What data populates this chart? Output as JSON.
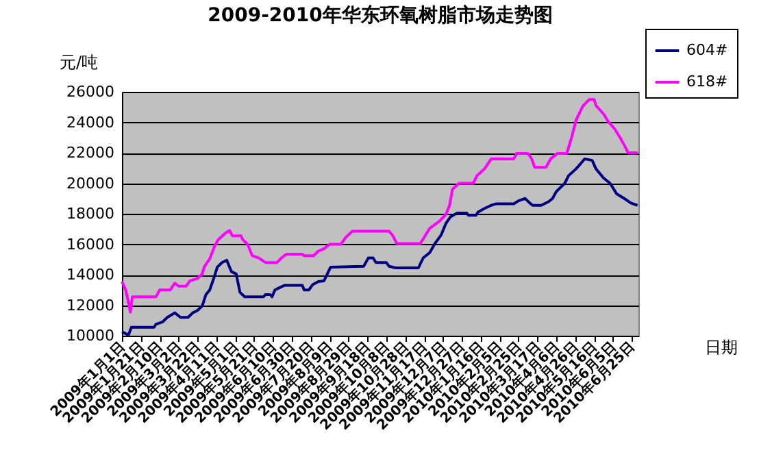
{
  "chart_data": {
    "type": "line",
    "title": "2009-2010年华东环氧树脂市场走势图",
    "xlabel": "日期",
    "ylabel": "元/吨",
    "ylim": [
      10000,
      26000
    ],
    "yticks": [
      10000,
      12000,
      14000,
      16000,
      18000,
      20000,
      22000,
      24000,
      26000
    ],
    "xlim": [
      "2009-01-01",
      "2010-07-02"
    ],
    "xticks": [
      {
        "value": "2009-01-01",
        "label": "2009年1月1日"
      },
      {
        "value": "2009-01-21",
        "label": "2009年1月21日"
      },
      {
        "value": "2009-02-10",
        "label": "2009年2月10日"
      },
      {
        "value": "2009-03-02",
        "label": "2009年3月2日"
      },
      {
        "value": "2009-03-22",
        "label": "2009年3月22日"
      },
      {
        "value": "2009-04-11",
        "label": "2009年4月11日"
      },
      {
        "value": "2009-05-01",
        "label": "2009年5月1日"
      },
      {
        "value": "2009-05-21",
        "label": "2009年5月21日"
      },
      {
        "value": "2009-06-10",
        "label": "2009年6月10日"
      },
      {
        "value": "2009-06-30",
        "label": "2009年6月30日"
      },
      {
        "value": "2009-07-20",
        "label": "2009年7月20日"
      },
      {
        "value": "2009-08-09",
        "label": "2009年8月9日"
      },
      {
        "value": "2009-08-29",
        "label": "2009年8月29日"
      },
      {
        "value": "2009-09-18",
        "label": "2009年9月18日"
      },
      {
        "value": "2009-10-08",
        "label": "2009年10月8日"
      },
      {
        "value": "2009-10-28",
        "label": "2009年10月28日"
      },
      {
        "value": "2009-11-17",
        "label": "2009年11月17日"
      },
      {
        "value": "2009-12-07",
        "label": "2009年12月7日"
      },
      {
        "value": "2009-12-27",
        "label": "2009年12月27日"
      },
      {
        "value": "2010-01-16",
        "label": "2010年1月16日"
      },
      {
        "value": "2010-02-05",
        "label": "2010年2月5日"
      },
      {
        "value": "2010-02-25",
        "label": "2010年2月25日"
      },
      {
        "value": "2010-03-17",
        "label": "2010年3月17日"
      },
      {
        "value": "2010-04-06",
        "label": "2010年4月6日"
      },
      {
        "value": "2010-04-26",
        "label": "2010年4月26日"
      },
      {
        "value": "2010-05-16",
        "label": "2010年5月16日"
      },
      {
        "value": "2010-06-05",
        "label": "2010年6月5日"
      },
      {
        "value": "2010-06-25",
        "label": "2010年6月25日"
      }
    ],
    "grid": "y",
    "legend": "top right",
    "series": [
      {
        "name": "604#",
        "color": "#000080",
        "x": [
          "2009-01-01",
          "2009-01-08",
          "2009-01-11",
          "2009-02-04",
          "2009-02-06",
          "2009-02-13",
          "2009-02-18",
          "2009-02-26",
          "2009-03-04",
          "2009-03-12",
          "2009-03-17",
          "2009-03-22",
          "2009-03-27",
          "2009-03-31",
          "2009-04-04",
          "2009-04-09",
          "2009-04-12",
          "2009-04-17",
          "2009-04-22",
          "2009-04-27",
          "2009-05-02",
          "2009-05-06",
          "2009-05-11",
          "2009-05-31",
          "2009-06-02",
          "2009-06-07",
          "2009-06-09",
          "2009-06-12",
          "2009-06-17",
          "2009-06-22",
          "2009-07-11",
          "2009-07-13",
          "2009-07-18",
          "2009-07-22",
          "2009-07-28",
          "2009-08-03",
          "2009-08-10",
          "2009-09-14",
          "2009-09-19",
          "2009-09-24",
          "2009-09-27",
          "2009-10-08",
          "2009-10-11",
          "2009-10-18",
          "2009-11-11",
          "2009-11-16",
          "2009-11-23",
          "2009-11-28",
          "2009-12-05",
          "2009-12-10",
          "2009-12-15",
          "2009-12-22",
          "2010-01-01",
          "2010-01-03",
          "2010-01-11",
          "2010-01-13",
          "2010-01-20",
          "2010-01-27",
          "2010-02-01",
          "2010-02-20",
          "2010-02-25",
          "2010-03-04",
          "2010-03-09",
          "2010-03-12",
          "2010-03-21",
          "2010-03-29",
          "2010-04-02",
          "2010-04-06",
          "2010-04-15",
          "2010-04-19",
          "2010-04-27",
          "2010-05-02",
          "2010-05-06",
          "2010-05-14",
          "2010-05-18",
          "2010-05-26",
          "2010-06-02",
          "2010-06-09",
          "2010-06-17",
          "2010-06-24",
          "2010-07-01"
        ],
        "values": [
          10250,
          10050,
          10550,
          10550,
          10750,
          10900,
          11200,
          11500,
          11200,
          11200,
          11500,
          11650,
          11950,
          12700,
          13000,
          13900,
          14500,
          14800,
          14950,
          14200,
          14050,
          12850,
          12550,
          12550,
          12700,
          12700,
          12550,
          13000,
          13150,
          13300,
          13300,
          13000,
          13000,
          13350,
          13550,
          13600,
          14500,
          14550,
          15100,
          15100,
          14800,
          14800,
          14550,
          14450,
          14450,
          15100,
          15450,
          16000,
          16600,
          17350,
          17800,
          18050,
          18050,
          17900,
          17900,
          18100,
          18350,
          18550,
          18650,
          18650,
          18850,
          19000,
          18700,
          18550,
          18550,
          18800,
          19000,
          19450,
          20000,
          20500,
          20950,
          21300,
          21600,
          21500,
          20950,
          20350,
          20000,
          19300,
          19000,
          18700,
          18550
        ]
      },
      {
        "name": "618#",
        "color": "#ff00ff",
        "x": [
          "2009-01-01",
          "2009-01-05",
          "2009-01-10",
          "2009-01-12",
          "2009-02-06",
          "2009-02-10",
          "2009-02-21",
          "2009-02-26",
          "2009-03-02",
          "2009-03-10",
          "2009-03-14",
          "2009-03-22",
          "2009-03-27",
          "2009-03-29",
          "2009-04-04",
          "2009-04-09",
          "2009-04-13",
          "2009-04-21",
          "2009-04-25",
          "2009-04-28",
          "2009-05-07",
          "2009-05-09",
          "2009-05-14",
          "2009-05-19",
          "2009-05-26",
          "2009-06-02",
          "2009-06-14",
          "2009-06-19",
          "2009-06-24",
          "2009-07-11",
          "2009-07-13",
          "2009-07-23",
          "2009-07-28",
          "2009-08-03",
          "2009-08-09",
          "2009-08-21",
          "2009-08-26",
          "2009-09-02",
          "2009-10-11",
          "2009-10-15",
          "2009-10-19",
          "2009-11-13",
          "2009-11-18",
          "2009-11-23",
          "2009-12-03",
          "2009-12-10",
          "2009-12-14",
          "2009-12-17",
          "2009-12-24",
          "2010-01-08",
          "2010-01-12",
          "2010-01-20",
          "2010-01-27",
          "2010-02-20",
          "2010-02-23",
          "2010-03-07",
          "2010-03-11",
          "2010-03-14",
          "2010-03-26",
          "2010-03-31",
          "2010-04-07",
          "2010-04-17",
          "2010-04-22",
          "2010-04-27",
          "2010-05-04",
          "2010-05-11",
          "2010-05-16",
          "2010-05-18",
          "2010-05-26",
          "2010-05-31",
          "2010-06-07",
          "2010-06-12",
          "2010-06-17",
          "2010-06-21",
          "2010-07-01"
        ],
        "values": [
          13550,
          13000,
          11550,
          12550,
          12550,
          13000,
          13000,
          13450,
          13250,
          13250,
          13600,
          13750,
          14050,
          14500,
          15050,
          15850,
          16300,
          16750,
          16900,
          16550,
          16550,
          16300,
          16000,
          15250,
          15100,
          14800,
          14800,
          15100,
          15350,
          15350,
          15250,
          15250,
          15550,
          15700,
          16000,
          16000,
          16450,
          16850,
          16850,
          16550,
          16050,
          16050,
          16550,
          17050,
          17500,
          17950,
          18550,
          19600,
          20000,
          20000,
          20500,
          20950,
          21600,
          21600,
          21950,
          21950,
          21600,
          21050,
          21050,
          21600,
          21950,
          21950,
          22950,
          24150,
          25050,
          25500,
          25500,
          25100,
          24550,
          24050,
          23550,
          23050,
          22500,
          22000,
          22000
        ]
      }
    ]
  }
}
